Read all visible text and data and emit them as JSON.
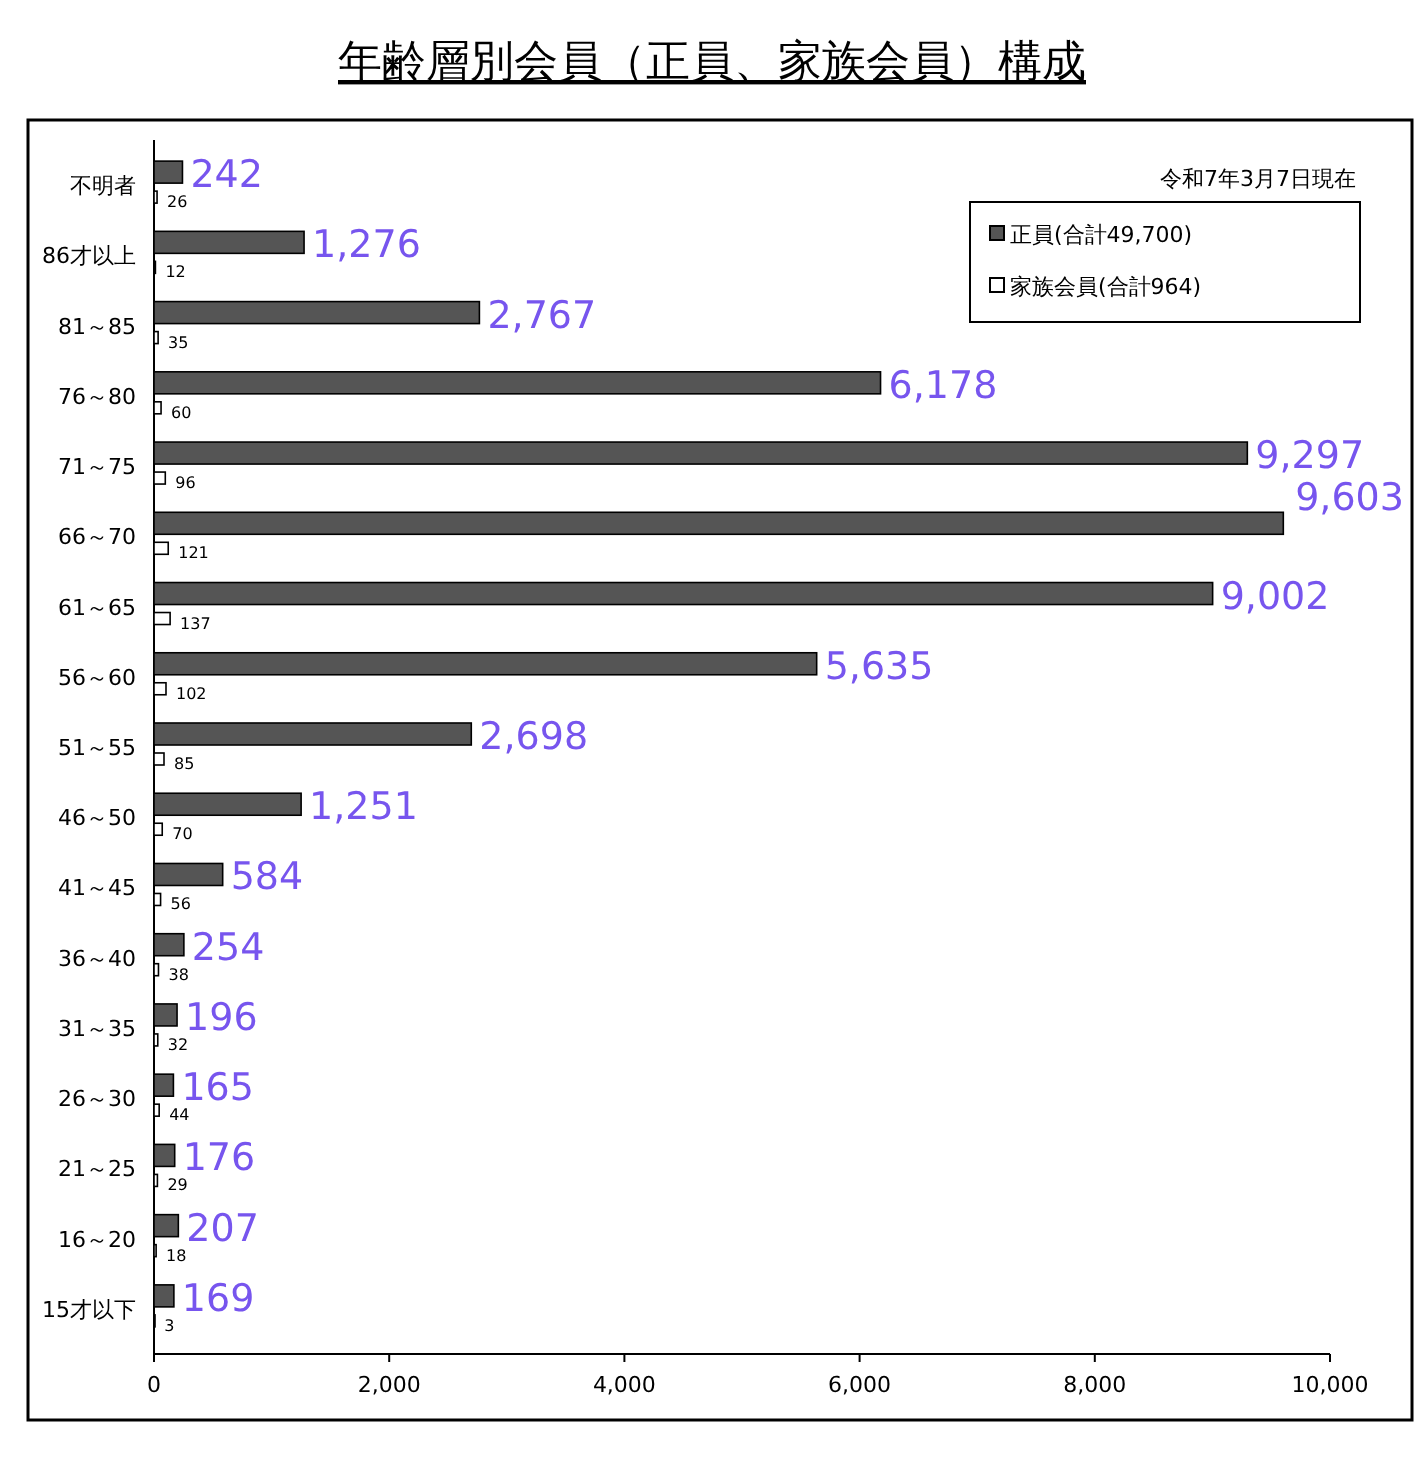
{
  "chart_data": {
    "type": "bar",
    "orientation": "horizontal",
    "title": "年齢層別会員（正員、家族会員）構成",
    "categories": [
      "不明者",
      "86才以上",
      "81～85",
      "76～80",
      "71～75",
      "66～70",
      "61～65",
      "56～60",
      "51～55",
      "46～50",
      "41～45",
      "36～40",
      "31～35",
      "26～30",
      "21～25",
      "16～20",
      "15才以下"
    ],
    "series": [
      {
        "name": "正員(合計49,700)",
        "color": "#555555",
        "values": [
          242,
          1276,
          2767,
          6178,
          9297,
          9603,
          9002,
          5635,
          2698,
          1251,
          584,
          254,
          196,
          165,
          176,
          207,
          169
        ],
        "value_labels": [
          "242",
          "1,276",
          "2,767",
          "6,178",
          "9,297",
          "9,603",
          "9,002",
          "5,635",
          "2,698",
          "1,251",
          "584",
          "254",
          "196",
          "165",
          "176",
          "207",
          "169"
        ]
      },
      {
        "name": "家族会員(合計964)",
        "color": "#ffffff",
        "values": [
          26,
          12,
          35,
          60,
          96,
          121,
          137,
          102,
          85,
          70,
          56,
          38,
          32,
          44,
          29,
          18,
          3
        ],
        "value_labels": [
          "26",
          "12",
          "35",
          "60",
          "96",
          "121",
          "137",
          "102",
          "85",
          "70",
          "56",
          "38",
          "32",
          "44",
          "29",
          "18",
          "3"
        ]
      }
    ],
    "xlim": [
      0,
      10000
    ],
    "xticks": [
      0,
      {
        "value": 2000,
        "label": "2,000"
      },
      {
        "value": 4000,
        "label": "4,000"
      },
      {
        "value": 6000,
        "label": "6,000"
      },
      {
        "value": 8000,
        "label": "8,000"
      },
      {
        "value": 10000,
        "label": "10,000"
      }
    ],
    "legend": "top right",
    "grid": false,
    "annotations": [
      "令和7年3月7日現在"
    ]
  }
}
